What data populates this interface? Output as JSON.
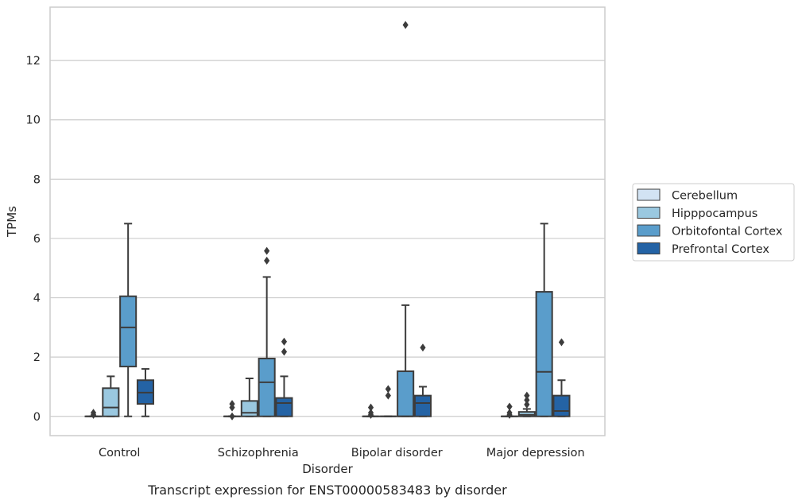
{
  "chart_data": {
    "type": "box",
    "title": "",
    "caption": "Transcript expression for ENST00000583483 by disorder",
    "xlabel": "Disorder",
    "ylabel": "TPMs",
    "ylim": [
      -0.65,
      13.8
    ],
    "yticks": [
      0,
      2,
      4,
      6,
      8,
      10,
      12
    ],
    "grid": true,
    "legend_position": "right",
    "categories": [
      "Control",
      "Schizophrenia",
      "Bipolar disorder",
      "Major depression"
    ],
    "series": [
      {
        "name": "Cerebellum",
        "color": "#d2e3f3",
        "boxes": [
          {
            "min": 0,
            "q1": 0,
            "median": 0,
            "q3": 0,
            "max": 0,
            "outliers": [
              0.05,
              0.12
            ]
          },
          {
            "min": 0,
            "q1": 0,
            "median": 0,
            "q3": 0,
            "max": 0,
            "outliers": [
              0,
              0.3,
              0.42
            ]
          },
          {
            "min": 0,
            "q1": 0,
            "median": 0,
            "q3": 0,
            "max": 0,
            "outliers": [
              0.05,
              0.12,
              0.3
            ]
          },
          {
            "min": 0,
            "q1": 0,
            "median": 0,
            "q3": 0,
            "max": 0,
            "outliers": [
              0.05,
              0.12,
              0.33
            ]
          }
        ]
      },
      {
        "name": "Hipppocampus",
        "color": "#9ac8e0",
        "boxes": [
          {
            "min": 0,
            "q1": 0,
            "median": 0.3,
            "q3": 0.95,
            "max": 1.35,
            "outliers": []
          },
          {
            "min": 0,
            "q1": 0,
            "median": 0.12,
            "q3": 0.52,
            "max": 1.28,
            "outliers": []
          },
          {
            "min": 0,
            "q1": 0,
            "median": 0,
            "q3": 0,
            "max": 0,
            "outliers": [
              0.7,
              0.92
            ]
          },
          {
            "min": 0,
            "q1": 0,
            "median": 0.05,
            "q3": 0.15,
            "max": 0.25,
            "outliers": [
              0.4,
              0.55,
              0.7
            ]
          }
        ]
      },
      {
        "name": "Orbitofontal Cortex",
        "color": "#5a9dcb",
        "boxes": [
          {
            "min": 0,
            "q1": 1.68,
            "median": 3.0,
            "q3": 4.05,
            "max": 6.5,
            "outliers": []
          },
          {
            "min": 0,
            "q1": 0,
            "median": 1.15,
            "q3": 1.95,
            "max": 4.7,
            "outliers": [
              5.25,
              5.58
            ]
          },
          {
            "min": 0,
            "q1": 0,
            "median": 0,
            "q3": 1.52,
            "max": 3.75,
            "outliers": [
              13.2
            ]
          },
          {
            "min": 0,
            "q1": 0,
            "median": 1.5,
            "q3": 4.2,
            "max": 6.5,
            "outliers": []
          }
        ]
      },
      {
        "name": "Prefrontal Cortex",
        "color": "#2463a5",
        "boxes": [
          {
            "min": 0,
            "q1": 0.42,
            "median": 0.8,
            "q3": 1.22,
            "max": 1.6,
            "outliers": []
          },
          {
            "min": 0,
            "q1": 0,
            "median": 0.45,
            "q3": 0.62,
            "max": 1.35,
            "outliers": [
              2.18,
              2.52
            ]
          },
          {
            "min": 0,
            "q1": 0,
            "median": 0.45,
            "q3": 0.7,
            "max": 1.0,
            "outliers": [
              2.32
            ]
          },
          {
            "min": 0,
            "q1": 0,
            "median": 0.18,
            "q3": 0.7,
            "max": 1.22,
            "outliers": [
              2.5
            ]
          }
        ]
      }
    ]
  }
}
